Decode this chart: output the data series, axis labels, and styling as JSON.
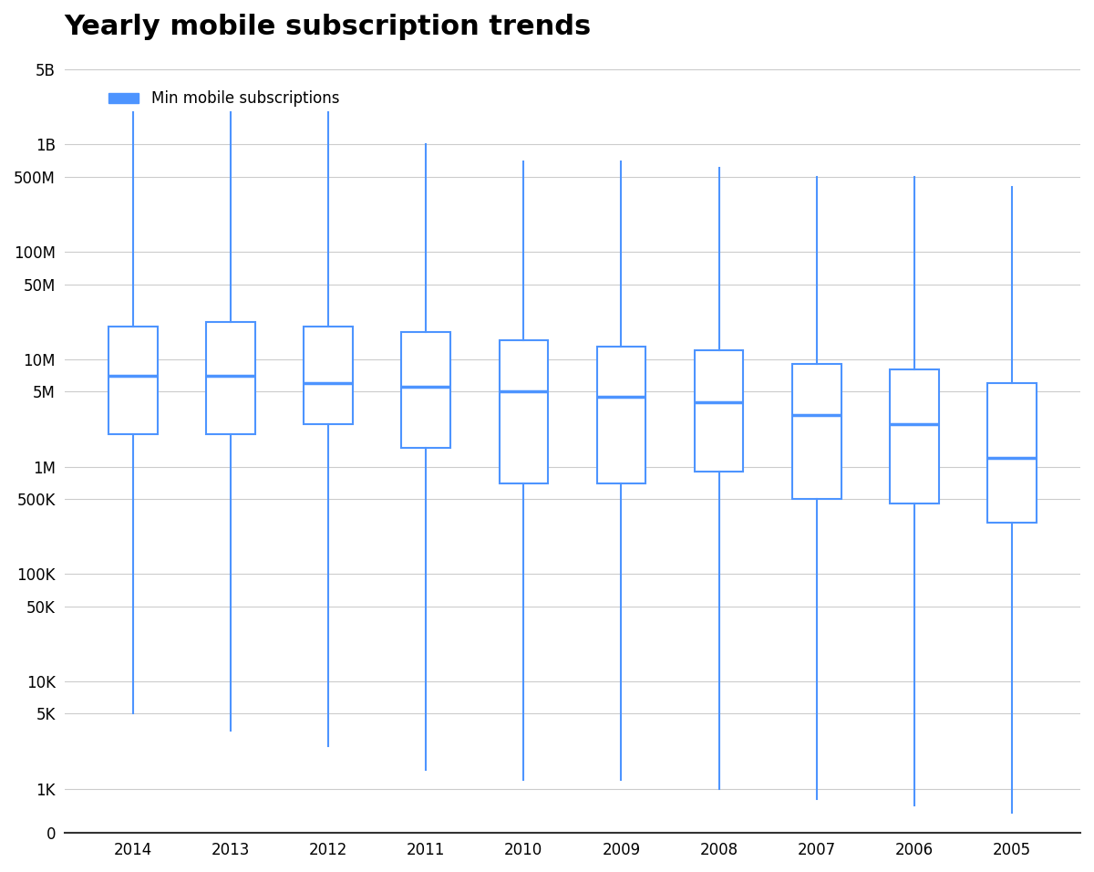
{
  "title": "Yearly mobile subscription trends",
  "legend_label": "Min mobile subscriptions",
  "legend_color": "#4d94ff",
  "years": [
    2014,
    2013,
    2012,
    2011,
    2010,
    2009,
    2008,
    2007,
    2006,
    2005
  ],
  "box_data": {
    "2014": {
      "whislo": 5000,
      "q1": 2000000,
      "med": 7000000,
      "q3": 20000000,
      "whishi": 2000000000
    },
    "2013": {
      "whislo": 3500,
      "q1": 2000000,
      "med": 7000000,
      "q3": 22000000,
      "whishi": 2000000000
    },
    "2012": {
      "whislo": 2500,
      "q1": 2500000,
      "med": 6000000,
      "q3": 20000000,
      "whishi": 2000000000
    },
    "2011": {
      "whislo": 1500,
      "q1": 1500000,
      "med": 5500000,
      "q3": 18000000,
      "whishi": 1000000000
    },
    "2010": {
      "whislo": 1200,
      "q1": 700000,
      "med": 5000000,
      "q3": 15000000,
      "whishi": 700000000
    },
    "2009": {
      "whislo": 1200,
      "q1": 700000,
      "med": 4500000,
      "q3": 13000000,
      "whishi": 700000000
    },
    "2008": {
      "whislo": 1000,
      "q1": 900000,
      "med": 4000000,
      "q3": 12000000,
      "whishi": 600000000
    },
    "2007": {
      "whislo": 800,
      "q1": 500000,
      "med": 3000000,
      "q3": 9000000,
      "whishi": 500000000
    },
    "2006": {
      "whislo": 700,
      "q1": 450000,
      "med": 2500000,
      "q3": 8000000,
      "whishi": 500000000
    },
    "2005": {
      "whislo": 600,
      "q1": 300000,
      "med": 1200000,
      "q3": 6000000,
      "whishi": 400000000
    }
  },
  "box_color": "#4d94ff",
  "box_facecolor": "white",
  "background_color": "#ffffff",
  "grid_color": "#cccccc",
  "yticks": [
    0,
    1000,
    5000,
    10000,
    50000,
    100000,
    500000,
    1000000,
    5000000,
    10000000,
    50000000,
    100000000,
    500000000,
    1000000000,
    5000000000
  ],
  "ytick_labels": [
    "0",
    "1K",
    "5K",
    "10K",
    "50K",
    "100K",
    "500K",
    "1M",
    "5M",
    "10M",
    "50M",
    "100M",
    "500M",
    "1B",
    "5B"
  ]
}
